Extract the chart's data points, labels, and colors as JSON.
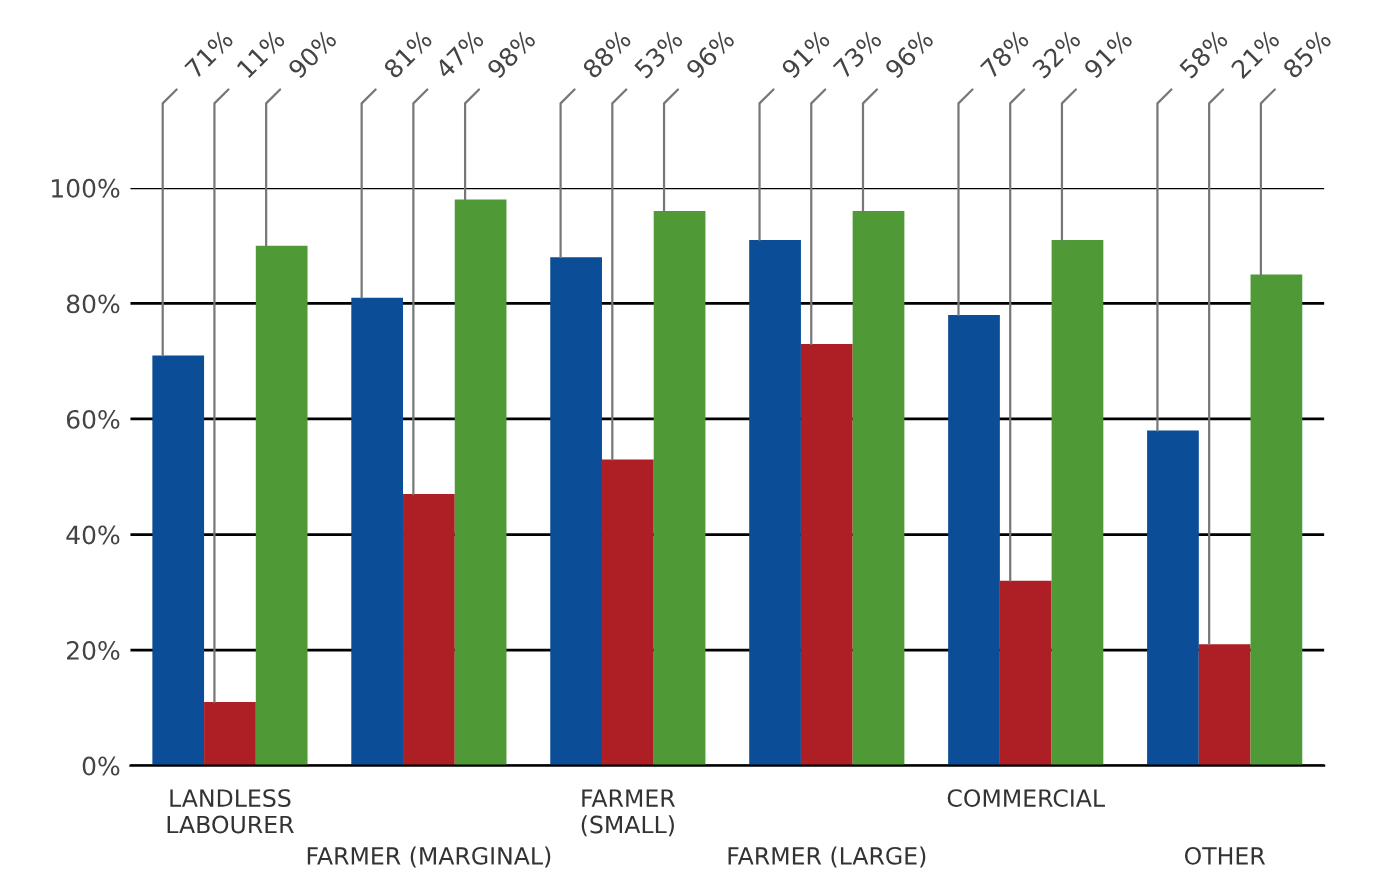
{
  "chart_data": {
    "type": "bar",
    "categories": [
      "LANDLESS\nLABOURER",
      "FARMER (MARGINAL)",
      "FARMER\n(SMALL)",
      "FARMER (LARGE)",
      "COMMERCIAL",
      "OTHER"
    ],
    "series": [
      {
        "color": "#0b4d96",
        "values": [
          71,
          81,
          88,
          91,
          78,
          58
        ],
        "value_labels": [
          "71%",
          "81%",
          "88%",
          "91%",
          "78%",
          "58%"
        ]
      },
      {
        "color": "#ad1f24",
        "values": [
          11,
          47,
          53,
          73,
          32,
          21
        ],
        "value_labels": [
          "11%",
          "47%",
          "53%",
          "73%",
          "32%",
          "21%"
        ]
      },
      {
        "color": "#4f9a37",
        "values": [
          90,
          98,
          96,
          96,
          91,
          85
        ],
        "value_labels": [
          "90%",
          "98%",
          "96%",
          "96%",
          "91%",
          "85%"
        ]
      }
    ],
    "ylim": [
      0,
      100
    ],
    "yticks": [
      {
        "value": 0,
        "label": "0%"
      },
      {
        "value": 20,
        "label": "20%"
      },
      {
        "value": 40,
        "label": "40%"
      },
      {
        "value": 60,
        "label": "60%"
      },
      {
        "value": 80,
        "label": "80%"
      },
      {
        "value": 100,
        "label": "100%"
      }
    ],
    "grid": "y"
  }
}
